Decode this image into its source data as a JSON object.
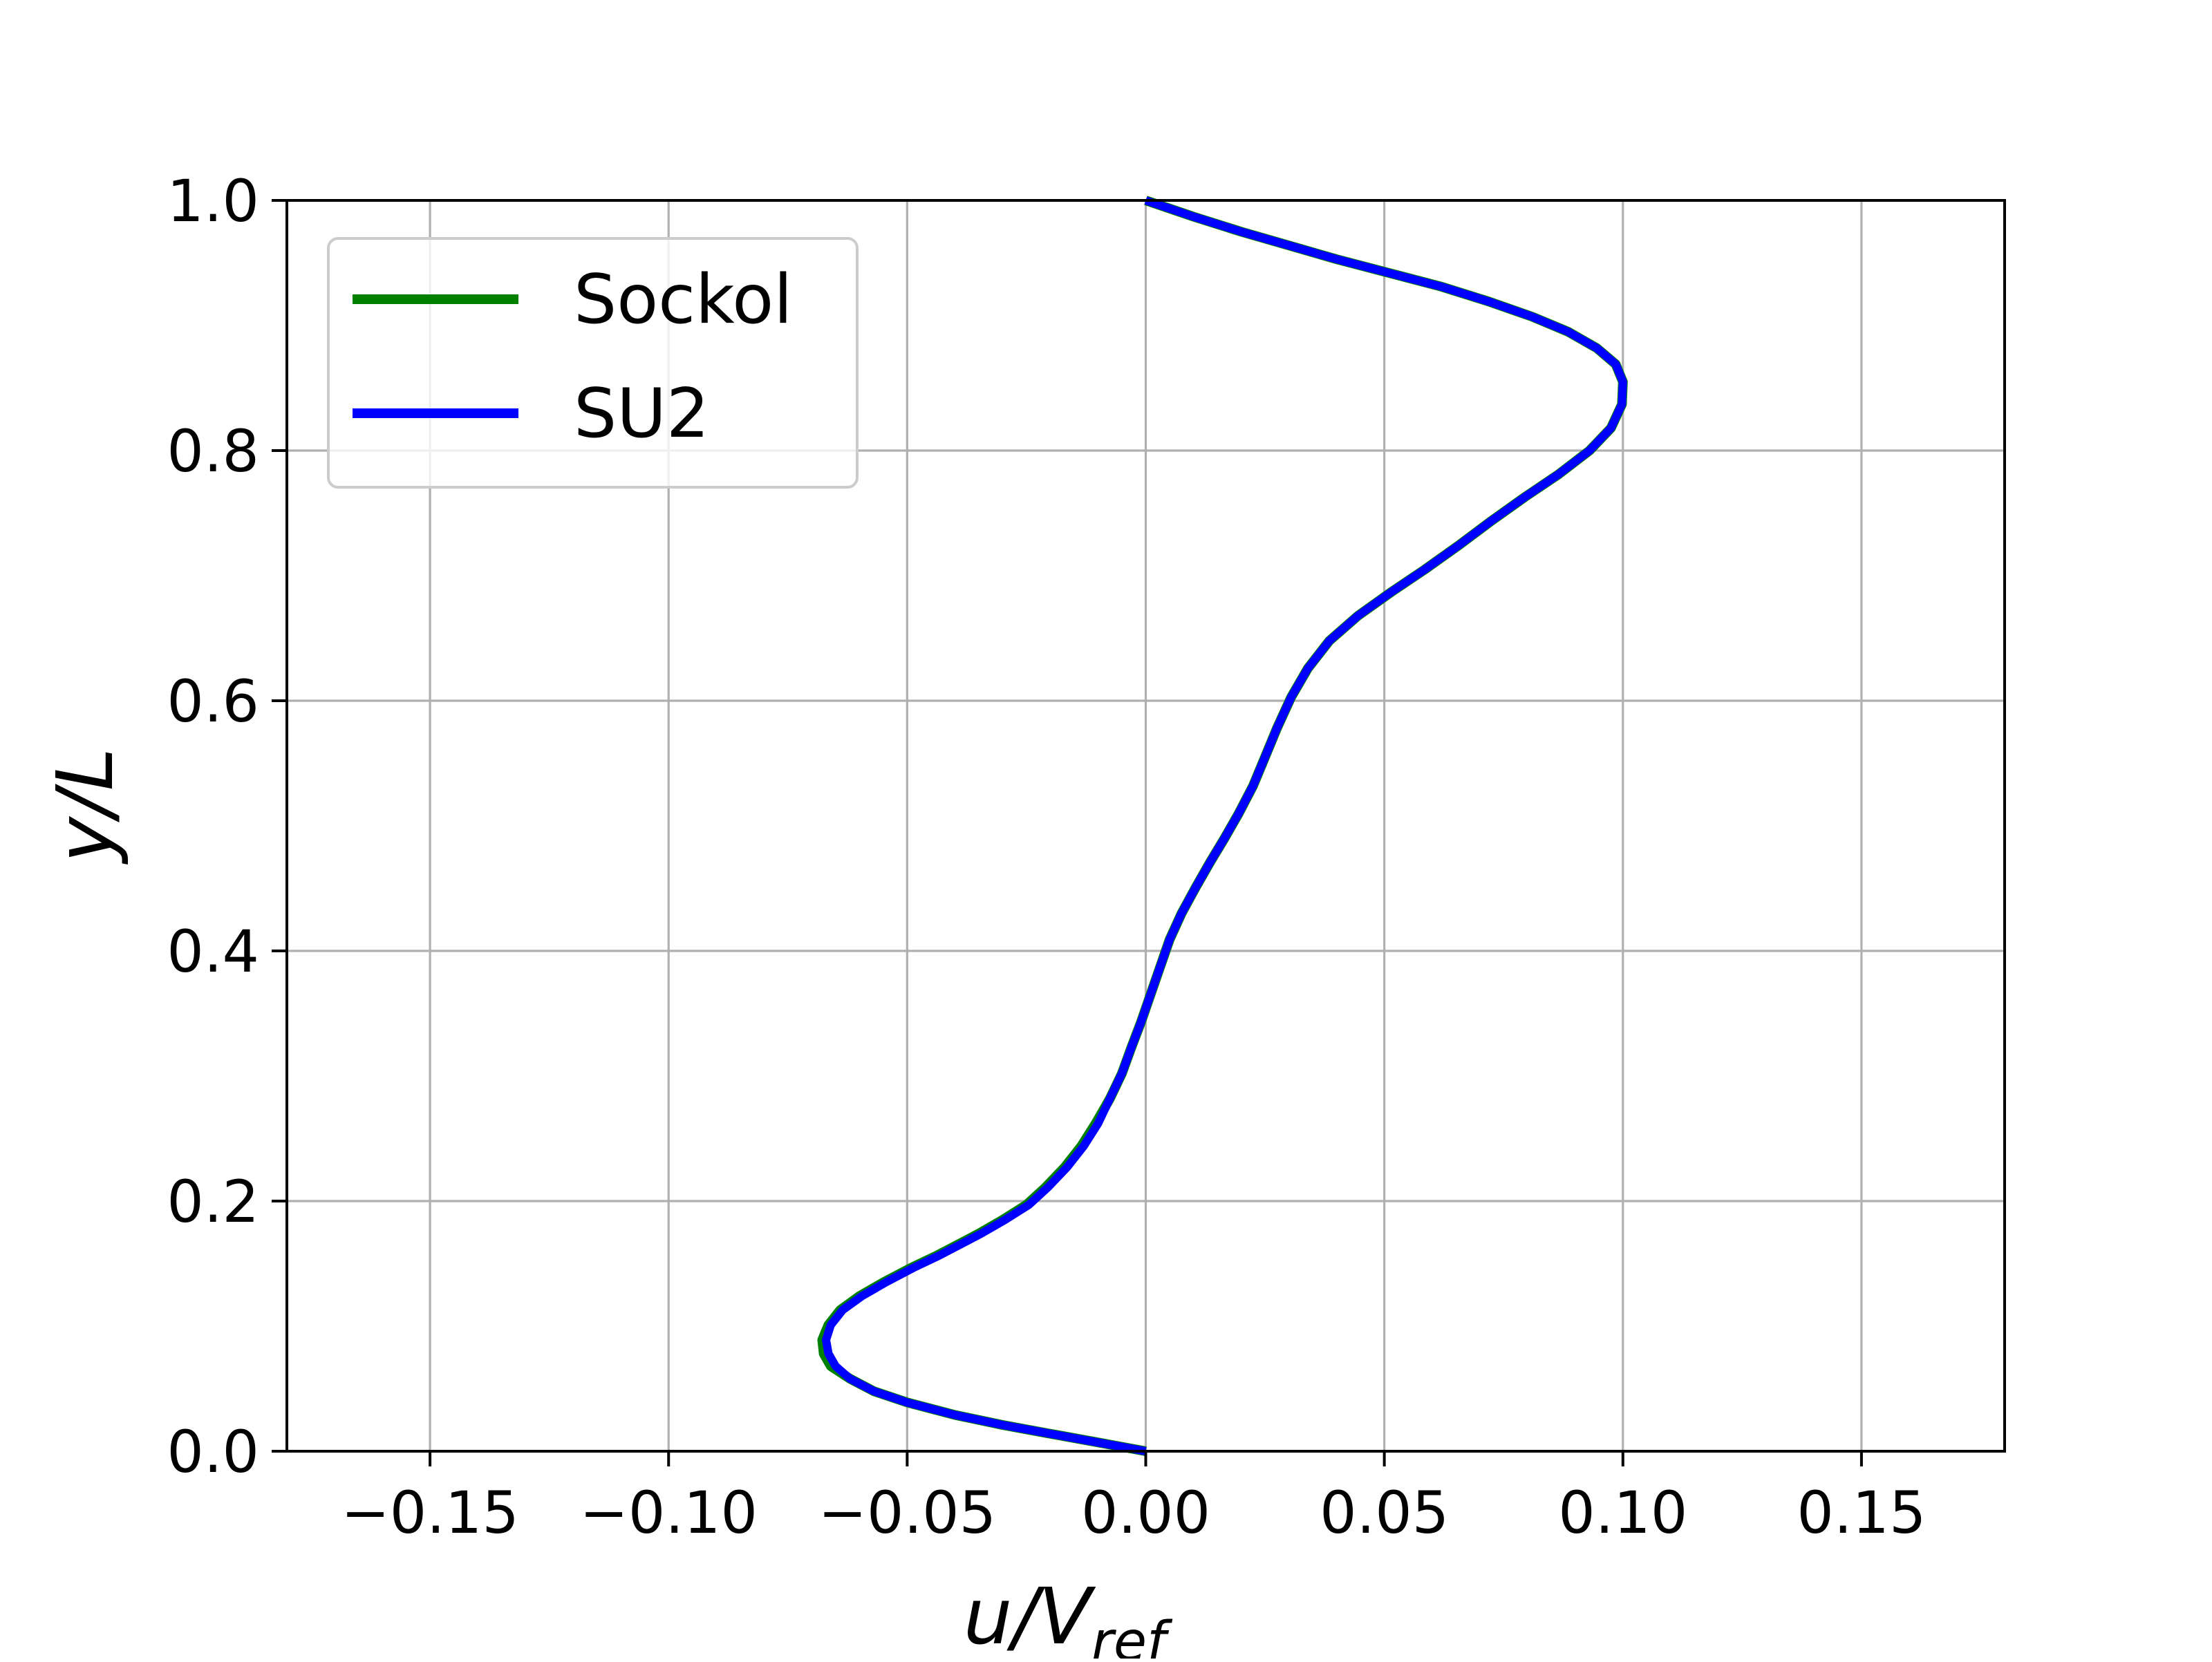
{
  "chart_data": {
    "type": "line",
    "xlabel": {
      "main": "u/V",
      "sub": "ref"
    },
    "ylabel": "y/L",
    "xlim": [
      -0.18,
      0.18
    ],
    "ylim": [
      0.0,
      1.0
    ],
    "grid": true,
    "legend_position": "upper-left",
    "x_ticks": [
      -0.15,
      -0.1,
      -0.05,
      0.0,
      0.05,
      0.1,
      0.15
    ],
    "x_tick_labels": [
      "−0.15",
      "−0.10",
      "−0.05",
      "0.00",
      "0.05",
      "0.10",
      "0.15"
    ],
    "y_ticks": [
      0.0,
      0.2,
      0.4,
      0.6,
      0.8,
      1.0
    ],
    "y_tick_labels": [
      "0.0",
      "0.2",
      "0.4",
      "0.6",
      "0.8",
      "1.0"
    ],
    "series": [
      {
        "name": "Sockol",
        "color": "#008000",
        "points": [
          [
            0.0,
            0.0
          ],
          [
            -0.01,
            0.007
          ],
          [
            -0.02,
            0.014
          ],
          [
            -0.03,
            0.021
          ],
          [
            -0.04,
            0.029
          ],
          [
            -0.05,
            0.039
          ],
          [
            -0.057,
            0.048
          ],
          [
            -0.062,
            0.058
          ],
          [
            -0.066,
            0.068
          ],
          [
            -0.0675,
            0.078
          ],
          [
            -0.0678,
            0.089
          ],
          [
            -0.0665,
            0.101
          ],
          [
            -0.064,
            0.113
          ],
          [
            -0.06,
            0.124
          ],
          [
            -0.055,
            0.135
          ],
          [
            -0.049,
            0.147
          ],
          [
            -0.044,
            0.156
          ],
          [
            -0.04,
            0.164
          ],
          [
            -0.035,
            0.174
          ],
          [
            -0.03,
            0.185
          ],
          [
            -0.025,
            0.197
          ],
          [
            -0.021,
            0.211
          ],
          [
            -0.017,
            0.227
          ],
          [
            -0.0135,
            0.244
          ],
          [
            -0.0105,
            0.262
          ],
          [
            -0.0075,
            0.282
          ],
          [
            -0.005,
            0.302
          ],
          [
            -0.003,
            0.323
          ],
          [
            -0.001,
            0.343
          ],
          [
            0.001,
            0.365
          ],
          [
            0.003,
            0.387
          ],
          [
            0.005,
            0.409
          ],
          [
            0.0075,
            0.43
          ],
          [
            0.0105,
            0.451
          ],
          [
            0.0135,
            0.471
          ],
          [
            0.0165,
            0.49
          ],
          [
            0.0195,
            0.51
          ],
          [
            0.0225,
            0.532
          ],
          [
            0.025,
            0.555
          ],
          [
            0.0275,
            0.578
          ],
          [
            0.0305,
            0.603
          ],
          [
            0.034,
            0.626
          ],
          [
            0.0385,
            0.648
          ],
          [
            0.0445,
            0.668
          ],
          [
            0.0515,
            0.687
          ],
          [
            0.0585,
            0.705
          ],
          [
            0.0655,
            0.724
          ],
          [
            0.0725,
            0.744
          ],
          [
            0.0795,
            0.763
          ],
          [
            0.0865,
            0.781
          ],
          [
            0.093,
            0.8
          ],
          [
            0.0975,
            0.818
          ],
          [
            0.0998,
            0.837
          ],
          [
            0.1,
            0.855
          ],
          [
            0.0985,
            0.869
          ],
          [
            0.0945,
            0.882
          ],
          [
            0.0885,
            0.895
          ],
          [
            0.081,
            0.907
          ],
          [
            0.072,
            0.919
          ],
          [
            0.062,
            0.931
          ],
          [
            0.051,
            0.942
          ],
          [
            0.04,
            0.953
          ],
          [
            0.03,
            0.964
          ],
          [
            0.02,
            0.975
          ],
          [
            0.01,
            0.987
          ],
          [
            0.0,
            1.0
          ]
        ]
      },
      {
        "name": "SU2",
        "color": "#0000ff",
        "points": [
          [
            0.0,
            0.0
          ],
          [
            -0.01,
            0.007
          ],
          [
            -0.02,
            0.014
          ],
          [
            -0.03,
            0.021
          ],
          [
            -0.04,
            0.029
          ],
          [
            -0.05,
            0.039
          ],
          [
            -0.057,
            0.048
          ],
          [
            -0.062,
            0.058
          ],
          [
            -0.065,
            0.068
          ],
          [
            -0.0665,
            0.078
          ],
          [
            -0.067,
            0.089
          ],
          [
            -0.066,
            0.101
          ],
          [
            -0.0635,
            0.113
          ],
          [
            -0.0595,
            0.124
          ],
          [
            -0.0545,
            0.135
          ],
          [
            -0.0485,
            0.147
          ],
          [
            -0.0435,
            0.156
          ],
          [
            -0.0395,
            0.164
          ],
          [
            -0.0345,
            0.174
          ],
          [
            -0.0295,
            0.185
          ],
          [
            -0.0245,
            0.197
          ],
          [
            -0.0205,
            0.211
          ],
          [
            -0.0165,
            0.227
          ],
          [
            -0.013,
            0.244
          ],
          [
            -0.01,
            0.262
          ],
          [
            -0.0075,
            0.282
          ],
          [
            -0.005,
            0.302
          ],
          [
            -0.003,
            0.323
          ],
          [
            -0.001,
            0.343
          ],
          [
            0.001,
            0.365
          ],
          [
            0.003,
            0.387
          ],
          [
            0.005,
            0.409
          ],
          [
            0.0075,
            0.43
          ],
          [
            0.0105,
            0.451
          ],
          [
            0.0135,
            0.471
          ],
          [
            0.0165,
            0.49
          ],
          [
            0.0195,
            0.51
          ],
          [
            0.0225,
            0.532
          ],
          [
            0.025,
            0.555
          ],
          [
            0.0275,
            0.578
          ],
          [
            0.0305,
            0.603
          ],
          [
            0.034,
            0.626
          ],
          [
            0.0385,
            0.648
          ],
          [
            0.0445,
            0.668
          ],
          [
            0.0515,
            0.687
          ],
          [
            0.0585,
            0.705
          ],
          [
            0.0655,
            0.724
          ],
          [
            0.0725,
            0.744
          ],
          [
            0.0795,
            0.763
          ],
          [
            0.0865,
            0.781
          ],
          [
            0.093,
            0.8
          ],
          [
            0.0975,
            0.818
          ],
          [
            0.0998,
            0.837
          ],
          [
            0.1,
            0.855
          ],
          [
            0.0985,
            0.869
          ],
          [
            0.0945,
            0.882
          ],
          [
            0.0885,
            0.895
          ],
          [
            0.081,
            0.907
          ],
          [
            0.072,
            0.919
          ],
          [
            0.062,
            0.931
          ],
          [
            0.051,
            0.942
          ],
          [
            0.04,
            0.953
          ],
          [
            0.03,
            0.964
          ],
          [
            0.02,
            0.975
          ],
          [
            0.01,
            0.987
          ],
          [
            0.0,
            1.0
          ]
        ]
      }
    ]
  }
}
